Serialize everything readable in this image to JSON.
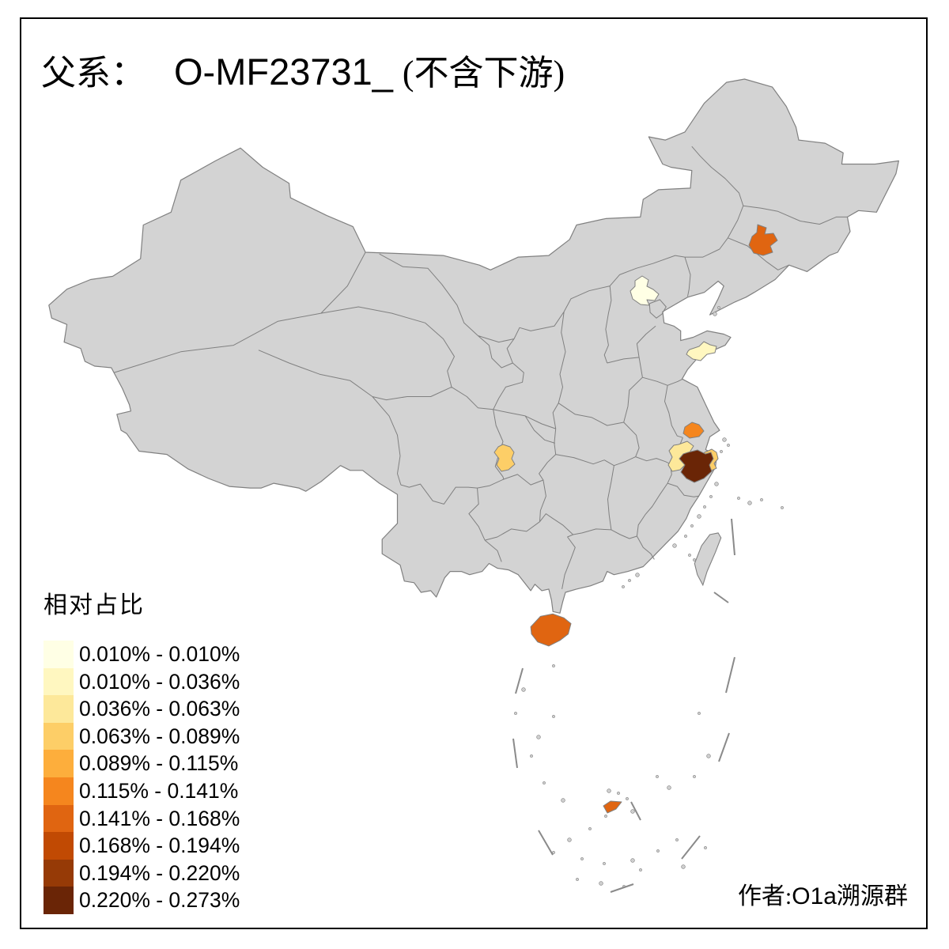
{
  "title": {
    "prefix": "父系：",
    "haplogroup": "O-MF23731_",
    "suffix": "(不含下游)"
  },
  "legend": {
    "title": "相对占比",
    "items": [
      {
        "label": "0.010% - 0.010%",
        "color": "#FFFFE5"
      },
      {
        "label": "0.010% - 0.036%",
        "color": "#FFF7C0"
      },
      {
        "label": "0.036% - 0.063%",
        "color": "#FDE89A"
      },
      {
        "label": "0.063% - 0.089%",
        "color": "#FDCE67"
      },
      {
        "label": "0.089% - 0.115%",
        "color": "#FDAE3C"
      },
      {
        "label": "0.115% - 0.141%",
        "color": "#F5861E"
      },
      {
        "label": "0.141% - 0.168%",
        "color": "#E06511"
      },
      {
        "label": "0.168% - 0.194%",
        "color": "#C14A03"
      },
      {
        "label": "0.194% - 0.220%",
        "color": "#963A06"
      },
      {
        "label": "0.220% - 0.273%",
        "color": "#6A2506"
      }
    ]
  },
  "map": {
    "background": "#FFFFFF",
    "land_color": "#D3D3D3",
    "border_color": "#808080",
    "regions": [
      {
        "id": "jilin-changchun",
        "color": "#E06511",
        "range": "0.141% - 0.168%"
      },
      {
        "id": "beijing",
        "color": "#FFFFE5",
        "range": "0.010% - 0.010%"
      },
      {
        "id": "shandong-qingdao",
        "color": "#FFF7C0",
        "range": "0.010% - 0.036%"
      },
      {
        "id": "chongqing",
        "color": "#FDCE67",
        "range": "0.063% - 0.089%"
      },
      {
        "id": "jiangsu-south",
        "color": "#F5861E",
        "range": "0.115% - 0.141%"
      },
      {
        "id": "zhejiang-west",
        "color": "#FDE89A",
        "range": "0.036% - 0.063%"
      },
      {
        "id": "zhejiang-east",
        "color": "#FDCE67",
        "range": "0.063% - 0.089%"
      },
      {
        "id": "zhejiang-central",
        "color": "#6A2506",
        "range": "0.220% - 0.273%"
      },
      {
        "id": "hainan",
        "color": "#E06511",
        "range": "0.141% - 0.168%"
      },
      {
        "id": "scs-islet",
        "color": "#E06511",
        "range": "0.141% - 0.168%"
      }
    ]
  },
  "attribution": {
    "prefix": "作者:",
    "group": "O1a",
    "suffix": "溯源群"
  }
}
